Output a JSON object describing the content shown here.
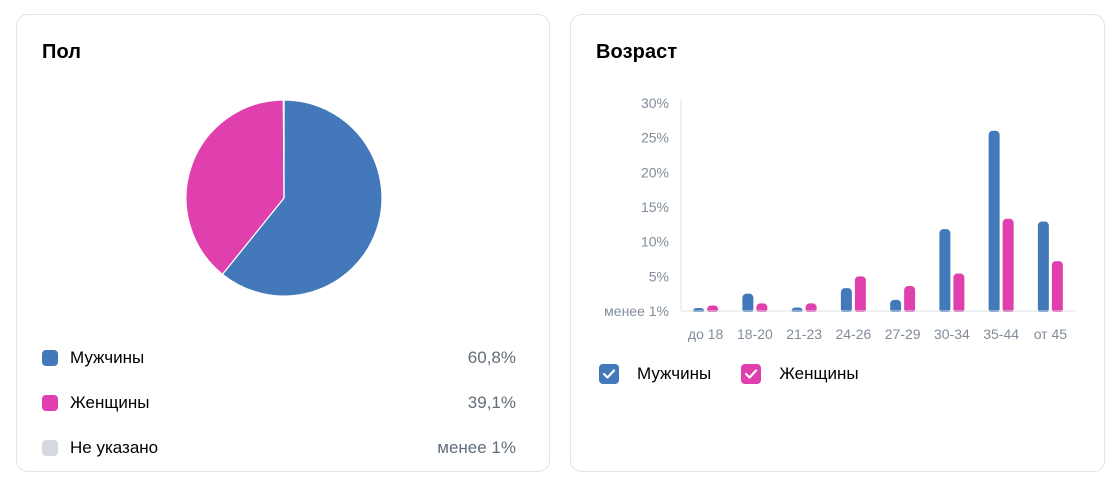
{
  "gender": {
    "title": "Пол",
    "legend": [
      {
        "label": "Мужчины",
        "value_text": "60,8%",
        "color": "#4379bb"
      },
      {
        "label": "Женщины",
        "value_text": "39,1%",
        "color": "#e040ae"
      },
      {
        "label": "Не указано",
        "value_text": "менее 1%",
        "color": "#d5d9de"
      }
    ]
  },
  "age": {
    "title": "Возраст",
    "legend": [
      {
        "label": "Мужчины",
        "color": "#4379bb"
      },
      {
        "label": "Женщины",
        "color": "#e040ae"
      }
    ]
  },
  "chart_data": [
    {
      "type": "pie",
      "title": "Пол",
      "categories": [
        "Мужчины",
        "Женщины",
        "Не указано"
      ],
      "values": [
        60.8,
        39.1,
        0.1
      ],
      "colors": [
        "#4379bb",
        "#e040ae",
        "#d5d9de"
      ]
    },
    {
      "type": "bar",
      "title": "Возраст",
      "categories": [
        "до 18",
        "18-20",
        "21-23",
        "24-26",
        "27-29",
        "30-34",
        "35-44",
        "от 45"
      ],
      "series": [
        {
          "name": "Мужчины",
          "color": "#4379bb",
          "values": [
            0.3,
            2.5,
            0.5,
            3.3,
            1.6,
            11.8,
            26.0,
            12.9
          ]
        },
        {
          "name": "Женщины",
          "color": "#e040ae",
          "values": [
            0.8,
            1.1,
            1.1,
            5.0,
            3.6,
            5.4,
            13.3,
            7.2
          ]
        }
      ],
      "yticks": [
        "менее 1%",
        "5%",
        "10%",
        "15%",
        "20%",
        "25%",
        "30%"
      ],
      "ylim": [
        0,
        30
      ],
      "legend": "bottom-left"
    }
  ]
}
